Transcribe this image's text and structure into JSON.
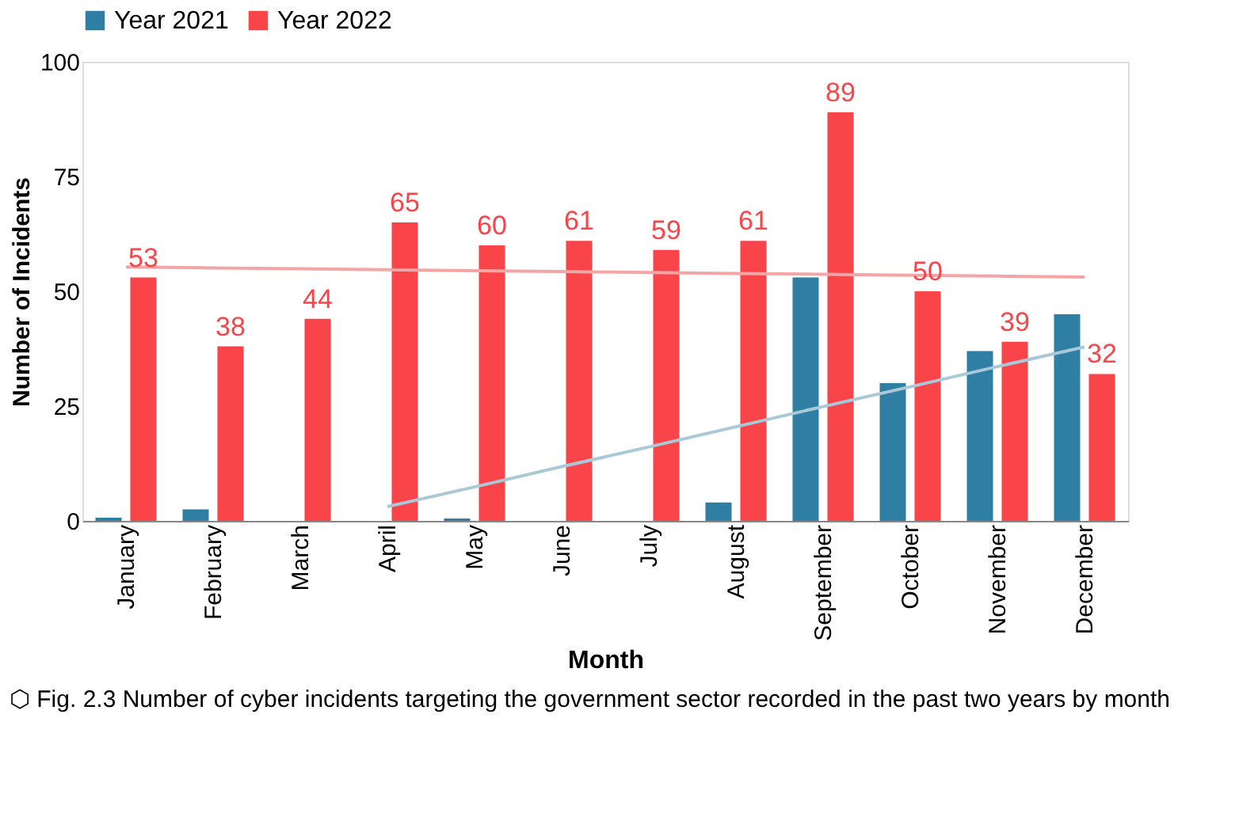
{
  "chart_data": {
    "type": "bar",
    "xlabel": "Month",
    "ylabel": "Number of Incidents",
    "categories": [
      "January",
      "February",
      "March",
      "April",
      "May",
      "June",
      "July",
      "August",
      "September",
      "October",
      "November",
      "December"
    ],
    "series": [
      {
        "name": "Year 2021",
        "color": "#2e7fa3",
        "values": [
          0.7,
          2.5,
          0,
          0,
          0.5,
          0,
          0,
          4,
          53,
          30,
          37,
          45
        ]
      },
      {
        "name": "Year 2022",
        "color": "#f94449",
        "values": [
          53,
          38,
          44,
          65,
          60,
          61,
          59,
          61,
          89,
          50,
          39,
          32
        ],
        "value_labels": [
          "53",
          "38",
          "44",
          "65",
          "60",
          "61",
          "59",
          "61",
          "89",
          "50",
          "39",
          "32"
        ]
      },
      {
        "type": "line",
        "color": "#f4a6a6",
        "values": [
          55.3,
          55.1,
          54.9,
          54.7,
          54.5,
          54.3,
          54.1,
          53.9,
          53.7,
          53.5,
          53.3,
          53.1
        ]
      },
      {
        "type": "line",
        "color": "#a9c9d8",
        "values": [
          null,
          null,
          null,
          3.1,
          7.4,
          11.8,
          16.1,
          20.5,
          24.9,
          29.2,
          33.6,
          37.9
        ]
      }
    ],
    "ylim": [
      0,
      100
    ],
    "yticks": [
      0,
      25,
      50,
      75,
      100
    ],
    "grid": false,
    "legend": "top",
    "annotations": [
      "⬡ Fig. 2.3 Number of cyber incidents targeting the government sector recorded in the past two years by month"
    ]
  }
}
